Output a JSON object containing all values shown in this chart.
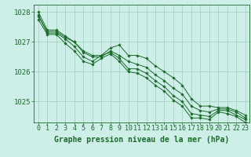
{
  "background_color": "#ceeee8",
  "grid_color": "#9ecfbf",
  "line_color": "#1a6b2a",
  "xlabel": "Graphe pression niveau de la mer (hPa)",
  "xlabel_fontsize": 7.0,
  "tick_fontsize": 6.0,
  "ytick_fontsize": 6.5,
  "yticks": [
    1025,
    1026,
    1027,
    1028
  ],
  "ylim": [
    1024.3,
    1028.25
  ],
  "xlim": [
    -0.5,
    23.5
  ],
  "series": [
    [
      1028.0,
      1027.4,
      1027.4,
      1027.2,
      1027.0,
      1026.7,
      1026.55,
      1026.55,
      1026.8,
      1026.9,
      1026.55,
      1026.55,
      1026.45,
      1026.2,
      1026.0,
      1025.8,
      1025.55,
      1025.1,
      1024.85,
      1024.85,
      1024.8,
      1024.8,
      1024.7,
      1024.55
    ],
    [
      1027.85,
      1027.35,
      1027.35,
      1027.15,
      1027.0,
      1026.65,
      1026.5,
      1026.5,
      1026.7,
      1026.55,
      1026.35,
      1026.25,
      1026.15,
      1025.9,
      1025.7,
      1025.45,
      1025.25,
      1024.85,
      1024.7,
      1024.65,
      1024.75,
      1024.75,
      1024.65,
      1024.45
    ],
    [
      1027.9,
      1027.3,
      1027.3,
      1027.1,
      1026.85,
      1026.5,
      1026.35,
      1026.55,
      1026.65,
      1026.45,
      1026.1,
      1026.1,
      1025.95,
      1025.7,
      1025.5,
      1025.2,
      1025.0,
      1024.6,
      1024.55,
      1024.5,
      1024.7,
      1024.7,
      1024.55,
      1024.4
    ],
    [
      1027.75,
      1027.25,
      1027.25,
      1026.95,
      1026.7,
      1026.35,
      1026.25,
      1026.45,
      1026.6,
      1026.35,
      1026.0,
      1025.95,
      1025.8,
      1025.55,
      1025.35,
      1025.05,
      1024.85,
      1024.45,
      1024.45,
      1024.4,
      1024.65,
      1024.6,
      1024.5,
      1024.3
    ]
  ]
}
